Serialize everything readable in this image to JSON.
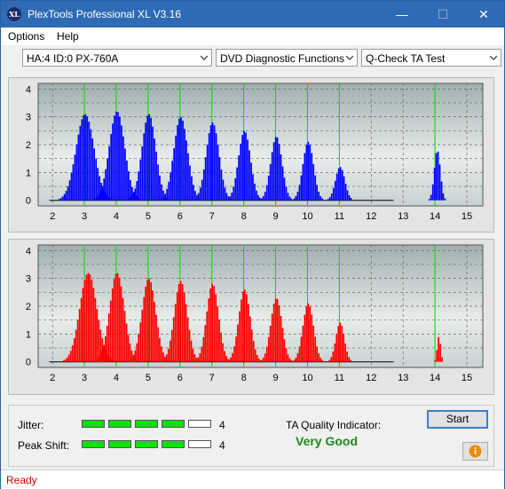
{
  "window": {
    "title": "PlexTools Professional XL V3.16",
    "icon_text": "XL",
    "minimize": "—",
    "maximize": "☐",
    "close": "✕"
  },
  "menu": {
    "options": "Options",
    "help": "Help"
  },
  "selectors": {
    "drive": "HA:4 ID:0  PX-760A",
    "function": "DVD Diagnostic Functions",
    "test": "Q-Check TA Test"
  },
  "chart_data": [
    {
      "type": "bar",
      "name": "upper",
      "color": "#0000ff",
      "x_ticks": [
        "2",
        "3",
        "4",
        "5",
        "6",
        "7",
        "8",
        "9",
        "10",
        "11",
        "12",
        "13",
        "14",
        "15"
      ],
      "y_ticks": [
        "0",
        "0.5",
        "1",
        "1.5",
        "2",
        "2.5",
        "3",
        "3.5",
        "4"
      ],
      "xlim": [
        1.55,
        15.5
      ],
      "ylim": [
        -0.2,
        4.2
      ],
      "markers": [
        3,
        4,
        5,
        6,
        7,
        8,
        9,
        10,
        11,
        14
      ],
      "peaks": [
        {
          "center": 3.0,
          "height": 3.1,
          "width": 0.42
        },
        {
          "center": 4.0,
          "height": 3.2,
          "width": 0.36
        },
        {
          "center": 5.0,
          "height": 3.1,
          "width": 0.32
        },
        {
          "center": 6.0,
          "height": 3.0,
          "width": 0.32
        },
        {
          "center": 7.0,
          "height": 2.8,
          "width": 0.3
        },
        {
          "center": 8.0,
          "height": 2.5,
          "width": 0.28
        },
        {
          "center": 9.0,
          "height": 2.3,
          "width": 0.26
        },
        {
          "center": 10.0,
          "height": 2.1,
          "width": 0.25
        },
        {
          "center": 11.0,
          "height": 1.2,
          "width": 0.22
        },
        {
          "center": 14.05,
          "height": 1.8,
          "width": 0.14
        }
      ]
    },
    {
      "type": "bar",
      "name": "lower",
      "color": "#ff0000",
      "x_ticks": [
        "2",
        "3",
        "4",
        "5",
        "6",
        "7",
        "8",
        "9",
        "10",
        "11",
        "12",
        "13",
        "14",
        "15"
      ],
      "y_ticks": [
        "0",
        "0.5",
        "1",
        "1.5",
        "2",
        "2.5",
        "3",
        "3.5",
        "4"
      ],
      "xlim": [
        1.55,
        15.5
      ],
      "ylim": [
        -0.2,
        4.2
      ],
      "markers": [
        3,
        4,
        5,
        6,
        7,
        8,
        9,
        10,
        11,
        14
      ],
      "peaks": [
        {
          "center": 3.1,
          "height": 3.2,
          "width": 0.4
        },
        {
          "center": 4.0,
          "height": 3.2,
          "width": 0.34
        },
        {
          "center": 5.0,
          "height": 3.0,
          "width": 0.32
        },
        {
          "center": 6.0,
          "height": 2.9,
          "width": 0.3
        },
        {
          "center": 7.0,
          "height": 2.8,
          "width": 0.28
        },
        {
          "center": 8.0,
          "height": 2.6,
          "width": 0.27
        },
        {
          "center": 9.0,
          "height": 2.3,
          "width": 0.26
        },
        {
          "center": 10.0,
          "height": 2.1,
          "width": 0.25
        },
        {
          "center": 11.0,
          "height": 1.4,
          "width": 0.2
        },
        {
          "center": 14.1,
          "height": 0.9,
          "width": 0.08
        }
      ]
    }
  ],
  "quality": {
    "jitter_label": "Jitter:",
    "jitter_value": "4",
    "jitter_level": 4,
    "peak_shift_label": "Peak Shift:",
    "peak_shift_value": "4",
    "peak_shift_level": 4,
    "max_level": 5,
    "indicator_label": "TA Quality Indicator:",
    "indicator_value": "Very Good",
    "indicator_color": "#1a8a1a"
  },
  "buttons": {
    "start": "Start",
    "info_icon": "info-icon"
  },
  "status": {
    "text": "Ready",
    "color": "#d60000"
  },
  "colors": {
    "title_bar": "#2e6bb4",
    "marker": "#00dd00",
    "level_on": "#11dd11"
  }
}
